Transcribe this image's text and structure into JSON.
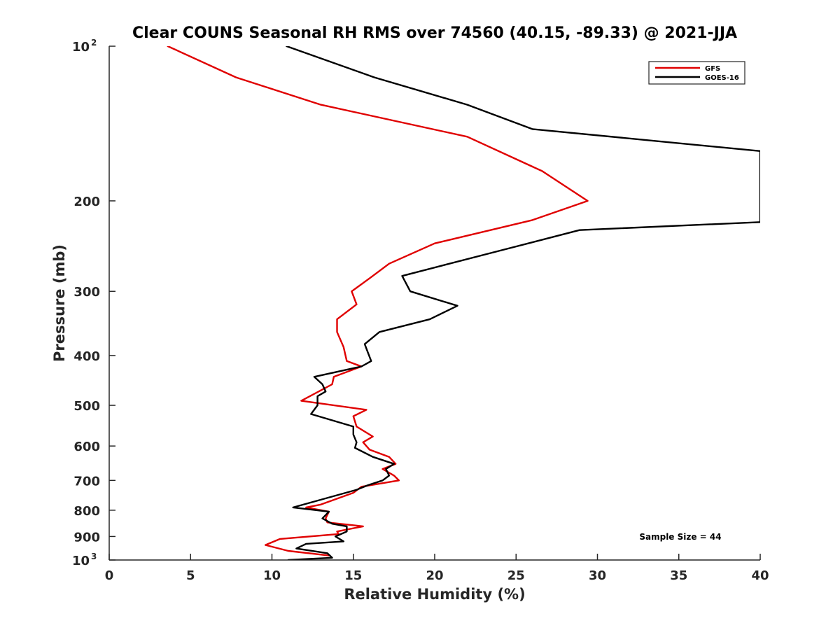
{
  "chart_data": {
    "type": "line",
    "title": "Clear COUNS Seasonal RH RMS over 74560 (40.15, -89.33) @ 2021-JJA",
    "xlabel": "Relative Humidity (%)",
    "ylabel": "Pressure (mb)",
    "xlim": [
      0,
      40
    ],
    "ylim": [
      100,
      1000
    ],
    "yscale": "log",
    "y_reversed": true,
    "xticks": [
      0,
      5,
      10,
      15,
      20,
      25,
      30,
      35,
      40
    ],
    "yticks": [
      {
        "value": 100,
        "label": "10",
        "sup": "2"
      },
      {
        "value": 200,
        "label": "200",
        "sup": ""
      },
      {
        "value": 300,
        "label": "300",
        "sup": ""
      },
      {
        "value": 400,
        "label": "400",
        "sup": ""
      },
      {
        "value": 500,
        "label": "500",
        "sup": ""
      },
      {
        "value": 600,
        "label": "600",
        "sup": ""
      },
      {
        "value": 700,
        "label": "700",
        "sup": ""
      },
      {
        "value": 800,
        "label": "800",
        "sup": ""
      },
      {
        "value": 900,
        "label": "900",
        "sup": ""
      },
      {
        "value": 1000,
        "label": "10",
        "sup": "3"
      }
    ],
    "legend_position": "top-right",
    "annotation": "Sample Size = 44",
    "series": [
      {
        "name": "GFS",
        "color": "#e00000",
        "x": [
          3.6,
          7.8,
          13.0,
          22.0,
          26.6,
          29.4,
          26.0,
          20.0,
          17.2,
          16.0,
          14.9,
          15.2,
          14.0,
          14.0,
          14.4,
          14.6,
          15.5,
          13.8,
          13.7,
          11.8,
          15.8,
          15.0,
          15.2,
          16.2,
          15.6,
          16.0,
          17.2,
          17.6,
          16.8,
          17.5,
          17.8,
          15.5,
          15.0,
          13.0,
          12.1,
          13.5,
          13.3,
          13.4,
          15.6,
          14.0,
          14.1,
          10.5,
          9.6,
          11.0,
          13.5
        ],
        "y": [
          100,
          115,
          130,
          150,
          175,
          200,
          218,
          242,
          265,
          283,
          300,
          318,
          340,
          360,
          385,
          410,
          420,
          440,
          455,
          490,
          510,
          525,
          550,
          575,
          590,
          610,
          630,
          650,
          665,
          685,
          700,
          720,
          740,
          780,
          790,
          805,
          830,
          845,
          860,
          880,
          890,
          910,
          935,
          960,
          980
        ]
      },
      {
        "name": "GOES-16",
        "color": "#000000",
        "x": [
          10.9,
          16.3,
          22.0,
          26.0,
          40.0,
          40.0,
          28.9,
          24.0,
          18.0,
          18.5,
          21.4,
          19.7,
          16.6,
          15.7,
          15.9,
          16.1,
          15.5,
          12.6,
          13.1,
          13.3,
          12.8,
          12.8,
          12.4,
          15.0,
          15.0,
          15.2,
          15.1,
          16.2,
          17.5,
          17.0,
          17.2,
          16.8,
          15.9,
          15.2,
          11.3,
          13.5,
          13.1,
          13.7,
          14.6,
          14.6,
          13.9,
          14.4,
          12.1,
          11.5,
          13.4,
          13.7,
          11.0
        ],
        "y": [
          100,
          115,
          130,
          145,
          160,
          220,
          228,
          250,
          280,
          300,
          320,
          340,
          360,
          380,
          395,
          410,
          420,
          440,
          455,
          470,
          480,
          500,
          520,
          550,
          570,
          590,
          605,
          630,
          650,
          665,
          685,
          700,
          715,
          730,
          790,
          805,
          830,
          850,
          860,
          880,
          900,
          920,
          930,
          950,
          970,
          990,
          1000
        ]
      }
    ]
  }
}
